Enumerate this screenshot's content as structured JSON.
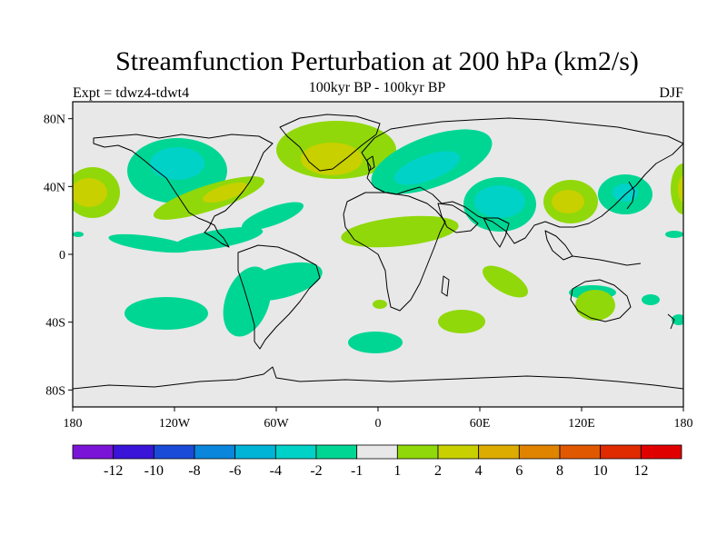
{
  "header": {
    "title": "Streamfunction Perturbation at 200 hPa (km2/s)",
    "subtitle": "100kyr BP - 100kyr BP",
    "left_string": "Expt = tdwz4-tdwt4",
    "right_string": "DJF"
  },
  "axes": {
    "lat_labels": [
      "80N",
      "40N",
      "0",
      "40S",
      "80S"
    ],
    "lon_labels": [
      "180",
      "120W",
      "60W",
      "0",
      "60E",
      "120E",
      "180"
    ]
  },
  "colorbar": {
    "labels": [
      "-12",
      "-10",
      "-8",
      "-6",
      "-4",
      "-2",
      "-1",
      "1",
      "2",
      "4",
      "6",
      "8",
      "10",
      "12"
    ],
    "colors": [
      "#7a14d6",
      "#3a14d8",
      "#1a4ad8",
      "#0a86dc",
      "#00b4d8",
      "#00d2c8",
      "#00d694",
      "#e8e8e8",
      "#90d80a",
      "#c8d000",
      "#dcac00",
      "#e08400",
      "#e05800",
      "#e02a00",
      "#e00000"
    ]
  },
  "map_colors": {
    "ocean": "#e8e8e8",
    "neg_weak": "#00d694",
    "neg_mid": "#00d2c8",
    "pos_weak": "#90d80a",
    "pos_mid": "#c8d000"
  }
}
